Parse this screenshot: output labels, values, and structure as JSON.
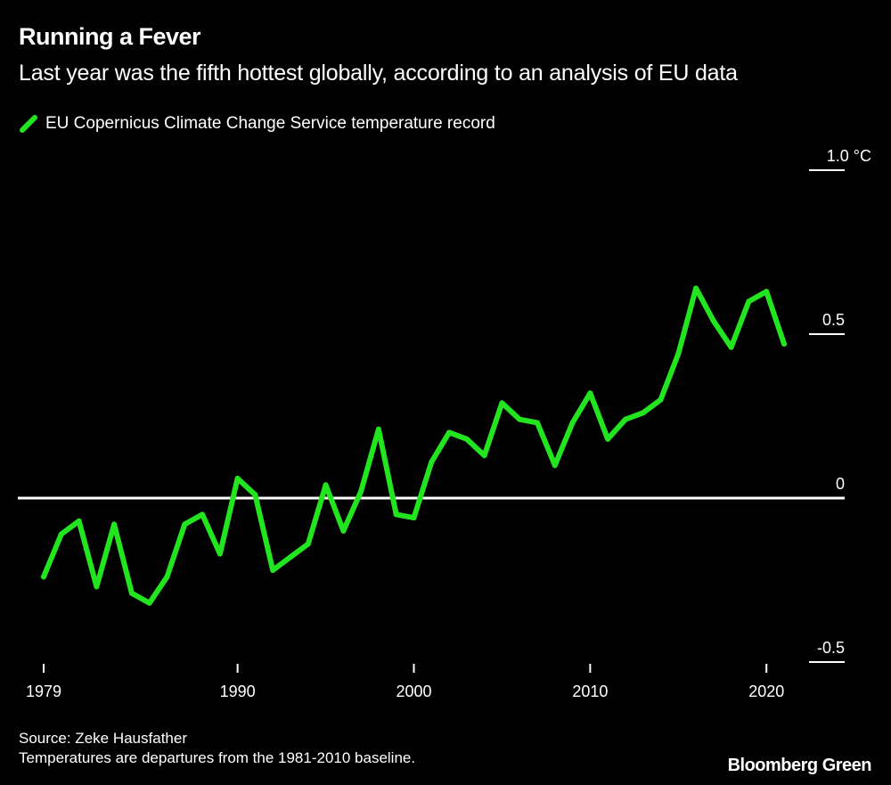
{
  "header": {
    "title": "Running a Fever",
    "subtitle": "Last year was the fifth hottest globally, according to an analysis of EU data"
  },
  "footer": {
    "source": "Source: Zeke Hausfather",
    "note": "Temperatures are departures from the 1981-2010 baseline.",
    "brand": "Bloomberg Green"
  },
  "chart_data": {
    "type": "line",
    "title": "Running a Fever",
    "subtitle": "Last year was the fifth hottest globally, according to an analysis of EU data",
    "legend_position": "top-left",
    "grid": false,
    "ylim": [
      -0.5,
      1.0
    ],
    "xlim": [
      1979,
      2021
    ],
    "y_ticks": [
      {
        "value": 1.0,
        "label": "1.0 °C"
      },
      {
        "value": 0.5,
        "label": "0.5"
      },
      {
        "value": 0,
        "label": "0"
      },
      {
        "value": -0.5,
        "label": "-0.5"
      }
    ],
    "x_ticks": [
      {
        "value": 1979,
        "label": "1979"
      },
      {
        "value": 1990,
        "label": "1990"
      },
      {
        "value": 2000,
        "label": "2000"
      },
      {
        "value": 2010,
        "label": "2010"
      },
      {
        "value": 2020,
        "label": "2020"
      }
    ],
    "series": [
      {
        "name": "EU Copernicus Climate Change Service temperature record",
        "color": "#22e51f",
        "x": [
          1979,
          1980,
          1981,
          1982,
          1983,
          1984,
          1985,
          1986,
          1987,
          1988,
          1989,
          1990,
          1991,
          1992,
          1993,
          1994,
          1995,
          1996,
          1997,
          1998,
          1999,
          2000,
          2001,
          2002,
          2003,
          2004,
          2005,
          2006,
          2007,
          2008,
          2009,
          2010,
          2011,
          2012,
          2013,
          2014,
          2015,
          2016,
          2017,
          2018,
          2019,
          2020,
          2021
        ],
        "values": [
          -0.24,
          -0.11,
          -0.07,
          -0.27,
          -0.08,
          -0.29,
          -0.32,
          -0.24,
          -0.08,
          -0.05,
          -0.17,
          0.06,
          0.01,
          -0.22,
          -0.18,
          -0.14,
          0.04,
          -0.1,
          0.02,
          0.21,
          -0.05,
          -0.06,
          0.11,
          0.2,
          0.18,
          0.13,
          0.29,
          0.24,
          0.23,
          0.1,
          0.23,
          0.32,
          0.18,
          0.24,
          0.26,
          0.3,
          0.44,
          0.64,
          0.54,
          0.46,
          0.6,
          0.63,
          0.47
        ]
      }
    ]
  }
}
